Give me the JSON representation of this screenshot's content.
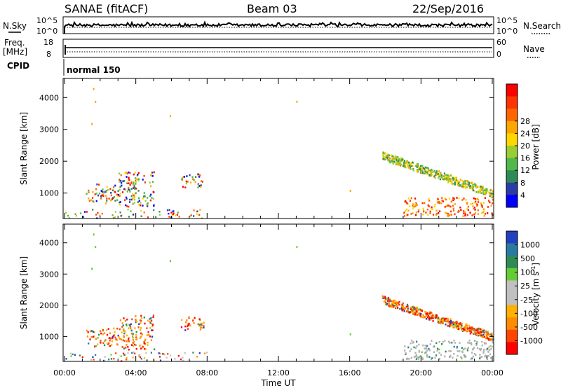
{
  "header": {
    "station": "SANAE (fitACF)",
    "beam": "Beam 03",
    "date": "22/Sep/2016"
  },
  "top_panels": {
    "nsky_label": "N.Sky",
    "nsearch_label": "N.Search",
    "nsky_ticks": [
      "10^5",
      "10^0"
    ],
    "nsearch_ticks": [
      "10^5",
      "10^0"
    ],
    "freq_label": "Freq.",
    "freq_unit": "[MHz]",
    "freq_ticks": [
      "18",
      "8"
    ],
    "nave_label": "Nave",
    "nave_ticks": [
      "60",
      "0"
    ],
    "cpid_label": "CPID",
    "cpid_value": "normal 150"
  },
  "colors": {
    "power": [
      "#0000ff",
      "#2a3ca6",
      "#2e8b57",
      "#50b848",
      "#9acd32",
      "#ffd700",
      "#ffa500",
      "#ff6600",
      "#ff3300",
      "#ff0000"
    ],
    "velocity": [
      "#ff0000",
      "#ff4500",
      "#ff8c00",
      "#ffb000",
      "#c0c0c0",
      "#c0c0c0",
      "#66cc33",
      "#2e8b57",
      "#2a7aa0",
      "#2040c0"
    ],
    "ground_scatter": "#b0b0b0"
  },
  "chart_data": [
    {
      "type": "heatmap",
      "name": "power",
      "ylabel": "Slant Range [km]",
      "xlabel": "Time UT",
      "xlim": [
        0,
        24
      ],
      "ylim": [
        200,
        4600
      ],
      "x_ticks": [
        "00:00",
        "04:00",
        "08:00",
        "12:00",
        "16:00",
        "20:00",
        "00:00"
      ],
      "y_ticks": [
        1000,
        2000,
        3000,
        4000
      ],
      "colorbar_label": "Power [dB]",
      "colorbar_ticks": [
        "4",
        "8",
        "12",
        "16",
        "20",
        "24",
        "28"
      ],
      "features": [
        {
          "t0": 1.2,
          "t1": 3.0,
          "r0": 700,
          "r1": 1300,
          "level": "mixed"
        },
        {
          "t0": 3.0,
          "t1": 5.0,
          "r0": 600,
          "r1": 1700,
          "level": "mixed"
        },
        {
          "t0": 6.5,
          "t1": 7.8,
          "r0": 1200,
          "r1": 1650,
          "level": "mixed"
        },
        {
          "t0": 17.8,
          "t1": 24.0,
          "r0": 1000,
          "r1": 2300,
          "level": "medium"
        },
        {
          "t0": 19.0,
          "t1": 24.0,
          "r0": 300,
          "r1": 900,
          "level": "high"
        }
      ]
    },
    {
      "type": "heatmap",
      "name": "velocity",
      "ylabel": "Slant Range [km]",
      "xlabel": "Time UT",
      "xlim": [
        0,
        24
      ],
      "ylim": [
        200,
        4600
      ],
      "x_ticks": [
        "00:00",
        "04:00",
        "08:00",
        "12:00",
        "16:00",
        "20:00",
        "00:00"
      ],
      "y_ticks": [
        1000,
        2000,
        3000,
        4000
      ],
      "colorbar_label": "Velocity [m s",
      "colorbar_label_sup": "-1",
      "colorbar_label_end": "]",
      "colorbar_ticks": [
        "1000",
        "500",
        "100",
        "25",
        "-25",
        "-100",
        "-500",
        "-1000"
      ],
      "features": [
        {
          "t0": 1.2,
          "t1": 3.0,
          "r0": 700,
          "r1": 1300,
          "level": "negative"
        },
        {
          "t0": 3.0,
          "t1": 5.0,
          "r0": 600,
          "r1": 1700,
          "level": "negative"
        },
        {
          "t0": 6.5,
          "t1": 7.8,
          "r0": 1200,
          "r1": 1650,
          "level": "negative"
        },
        {
          "t0": 17.8,
          "t1": 24.0,
          "r0": 1000,
          "r1": 2300,
          "level": "negative"
        },
        {
          "t0": 19.0,
          "t1": 24.0,
          "r0": 300,
          "r1": 900,
          "level": "ground"
        }
      ]
    }
  ]
}
